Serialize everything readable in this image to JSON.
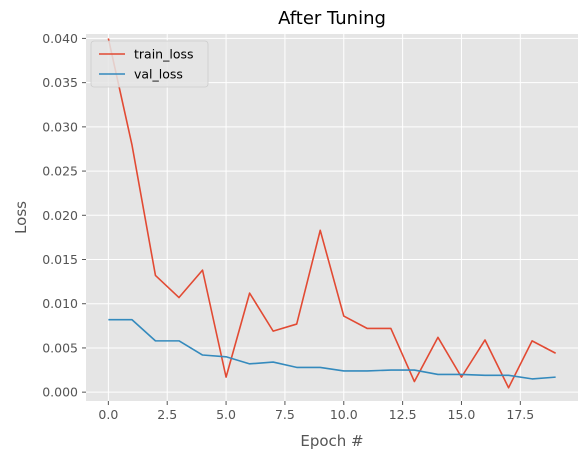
{
  "chart_data": {
    "type": "line",
    "title": "After Tuning",
    "xlabel": "Epoch #",
    "ylabel": "Loss",
    "x": [
      0,
      1,
      2,
      3,
      4,
      5,
      6,
      7,
      8,
      9,
      10,
      11,
      12,
      13,
      14,
      15,
      16,
      17,
      18,
      19
    ],
    "xlim": [
      -0.95,
      19.95
    ],
    "ylim": [
      -0.001,
      0.0405
    ],
    "xticks": [
      0.0,
      2.5,
      5.0,
      7.5,
      10.0,
      12.5,
      15.0,
      17.5
    ],
    "xtick_labels": [
      "0.0",
      "2.5",
      "5.0",
      "7.5",
      "10.0",
      "12.5",
      "15.0",
      "17.5"
    ],
    "yticks": [
      0.0,
      0.005,
      0.01,
      0.015,
      0.02,
      0.025,
      0.03,
      0.035,
      0.04
    ],
    "ytick_labels": [
      "0.000",
      "0.005",
      "0.010",
      "0.015",
      "0.020",
      "0.025",
      "0.030",
      "0.035",
      "0.040"
    ],
    "grid": true,
    "legend_position": "top-left",
    "series": [
      {
        "name": "train_loss",
        "color": "#E24A33",
        "values": [
          0.04,
          0.028,
          0.0132,
          0.0107,
          0.0138,
          0.0017,
          0.0112,
          0.0069,
          0.0077,
          0.0183,
          0.0086,
          0.0072,
          0.0072,
          0.0012,
          0.0062,
          0.0017,
          0.0059,
          0.0005,
          0.0058,
          0.0044
        ]
      },
      {
        "name": "val_loss",
        "color": "#348ABD",
        "values": [
          0.0082,
          0.0082,
          0.0058,
          0.0058,
          0.0042,
          0.004,
          0.0032,
          0.0034,
          0.0028,
          0.0028,
          0.0024,
          0.0024,
          0.0025,
          0.0025,
          0.002,
          0.002,
          0.0019,
          0.0019,
          0.0015,
          0.0017
        ]
      }
    ]
  },
  "colors": {
    "plot_background": "#E5E5E5",
    "grid": "#FFFFFF",
    "tick_text": "#555555"
  }
}
